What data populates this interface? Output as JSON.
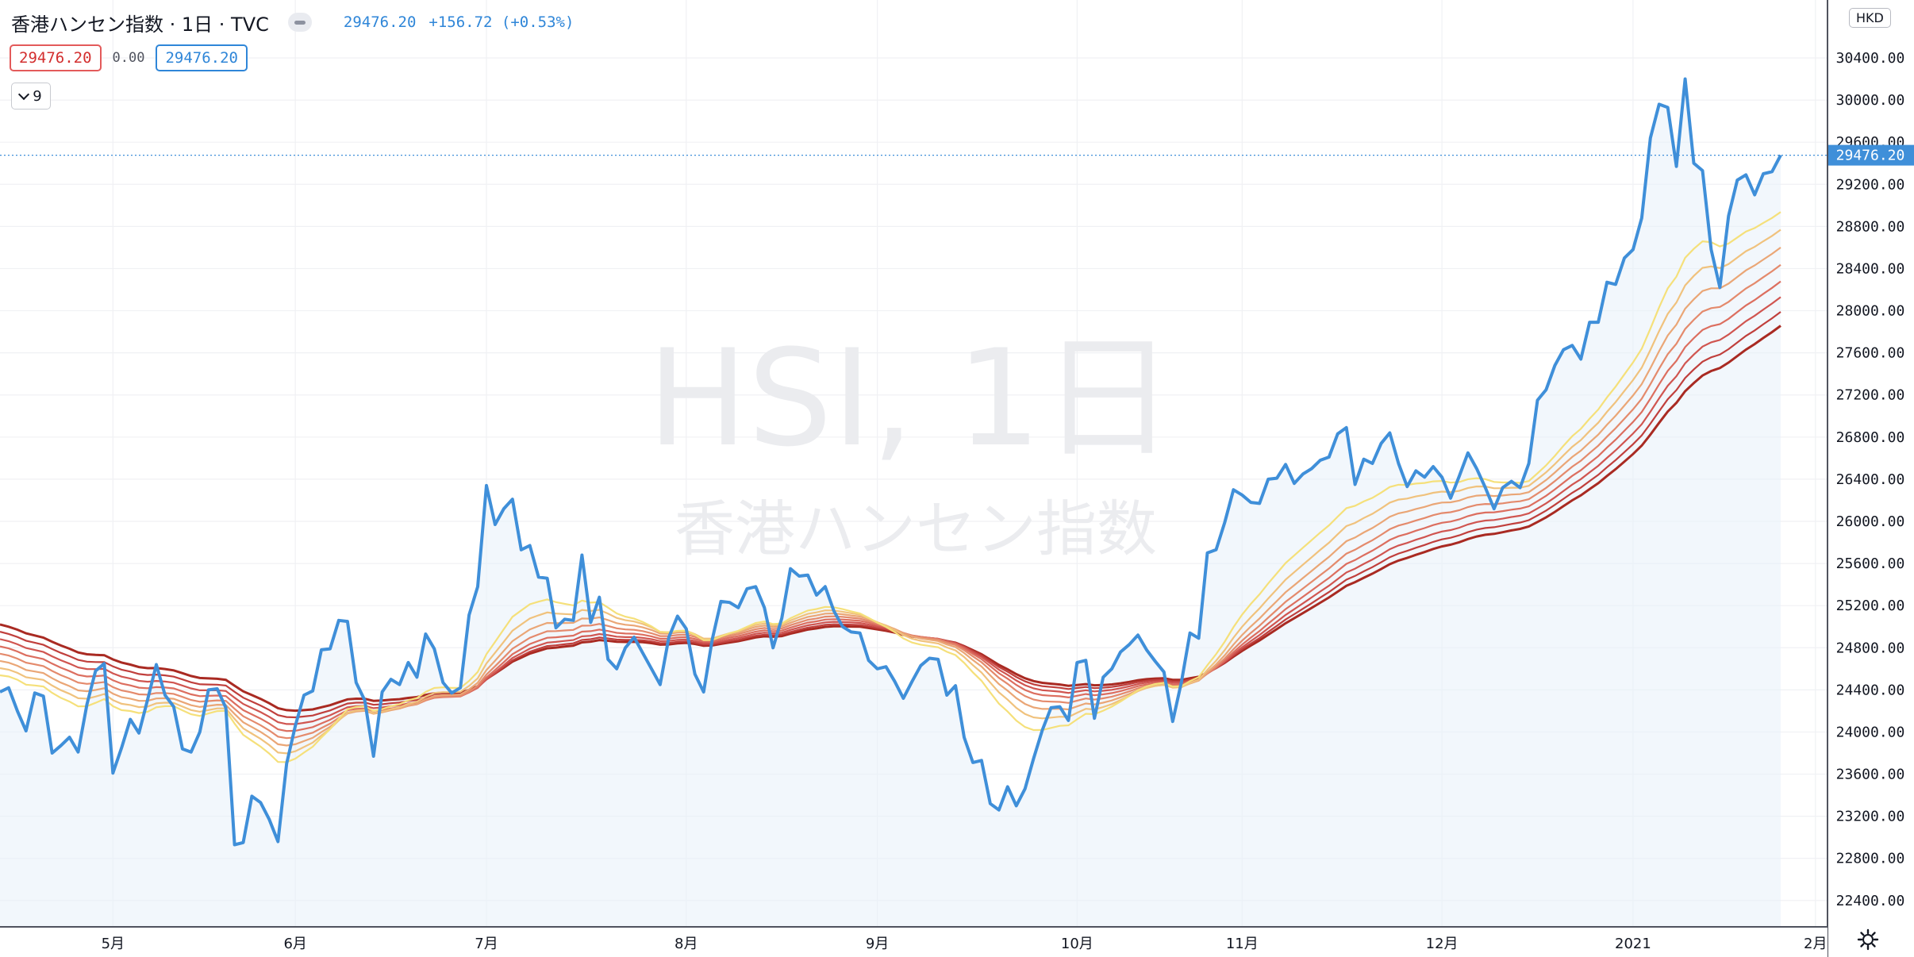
{
  "header": {
    "symbol_title": "香港ハンセン指数 · 1日 · TVC",
    "last_price": "29476.20",
    "change": "+156.72 (+0.53%)",
    "ohlc_left": "29476.20",
    "ohlc_mid": "0.00",
    "ohlc_right": "29476.20",
    "indicator_count": "9"
  },
  "currency_label": "HKD",
  "watermark": {
    "line1": "HSI, 1日",
    "line2": "香港ハンセン指数"
  },
  "colors": {
    "price_line": "#3f8fd9",
    "area_fill": "#e8f1fa",
    "ribbon": [
      "#f5e07a",
      "#f0c27d",
      "#eaa676",
      "#e48a6c",
      "#dc6e5f",
      "#d05550",
      "#c03f3c",
      "#a92a22"
    ]
  },
  "chart_data": {
    "type": "line",
    "title": "HSI, 1日",
    "subtitle": "香港ハンセン指数",
    "ylim": [
      22150,
      30950
    ],
    "y_ticks": [
      "30400.00",
      "30000.00",
      "29600.00",
      "29200.00",
      "28800.00",
      "28400.00",
      "28000.00",
      "27600.00",
      "27200.00",
      "26800.00",
      "26400.00",
      "26000.00",
      "25600.00",
      "25200.00",
      "24800.00",
      "24400.00",
      "24000.00",
      "23600.00",
      "23200.00",
      "22800.00",
      "22400.00"
    ],
    "y_tick_values": [
      30400,
      30000,
      29600,
      29200,
      28800,
      28400,
      28000,
      27600,
      27200,
      26800,
      26400,
      26000,
      25600,
      25200,
      24800,
      24400,
      24000,
      23600,
      23200,
      22800,
      22400
    ],
    "x_ticks": [
      "5月",
      "6月",
      "7月",
      "8月",
      "9月",
      "10月",
      "11月",
      "12月",
      "2021",
      "2月"
    ],
    "x_tick_index": [
      13,
      34,
      56,
      79,
      101,
      124,
      143,
      166,
      188,
      209
    ],
    "current_price": 29476.2,
    "current_price_label": "29476.20",
    "series": [
      {
        "values": [
          24380,
          24420,
          24200,
          24010,
          24370,
          24340,
          23800,
          23870,
          23950,
          23810,
          24260,
          24580,
          24650,
          23610,
          23850,
          24120,
          23990,
          24310,
          24640,
          24350,
          24240,
          23840,
          23810,
          24000,
          24400,
          24410,
          24230,
          22930,
          22950,
          23390,
          23330,
          23170,
          22960,
          23700,
          24060,
          24350,
          24390,
          24780,
          24790,
          25060,
          25050,
          24470,
          24300,
          23770,
          24380,
          24500,
          24450,
          24660,
          24520,
          24930,
          24790,
          24470,
          24370,
          24420,
          25110,
          25380,
          26340,
          25970,
          26120,
          26210,
          25730,
          25770,
          25470,
          25460,
          24990,
          25070,
          25060,
          25680,
          25040,
          25280,
          24690,
          24600,
          24800,
          24900,
          24750,
          24600,
          24450,
          24900,
          25100,
          24980,
          24550,
          24380,
          24880,
          25240,
          25230,
          25180,
          25360,
          25380,
          25180,
          24800,
          25080,
          25550,
          25480,
          25490,
          25300,
          25380,
          25150,
          25000,
          24950,
          24940,
          24680,
          24600,
          24620,
          24480,
          24320,
          24480,
          24630,
          24700,
          24690,
          24350,
          24440,
          23950,
          23710,
          23730,
          23320,
          23260,
          23480,
          23300,
          23460,
          23750,
          24020,
          24230,
          24240,
          24110,
          24660,
          24680,
          24130,
          24520,
          24600,
          24760,
          24830,
          24920,
          24780,
          24670,
          24570,
          24100,
          24470,
          24940,
          24890,
          25700,
          25730,
          25990,
          26300,
          26250,
          26180,
          26170,
          26400,
          26410,
          26540,
          26360,
          26450,
          26500,
          26580,
          26610,
          26830,
          26890,
          26350,
          26590,
          26550,
          26740,
          26840,
          26550,
          26330,
          26480,
          26420,
          26520,
          26420,
          26220,
          26430,
          26650,
          26500,
          26320,
          26120,
          26320,
          26380,
          26320,
          26550,
          27150,
          27250,
          27480,
          27630,
          27670,
          27540,
          27890,
          27890,
          28270,
          28250,
          28500,
          28580,
          28880,
          29640,
          29960,
          29930,
          29370,
          30200,
          29400,
          29330,
          28580,
          28220,
          28900,
          29240,
          29290,
          29100,
          29300,
          29320,
          29476
        ]
      }
    ]
  }
}
